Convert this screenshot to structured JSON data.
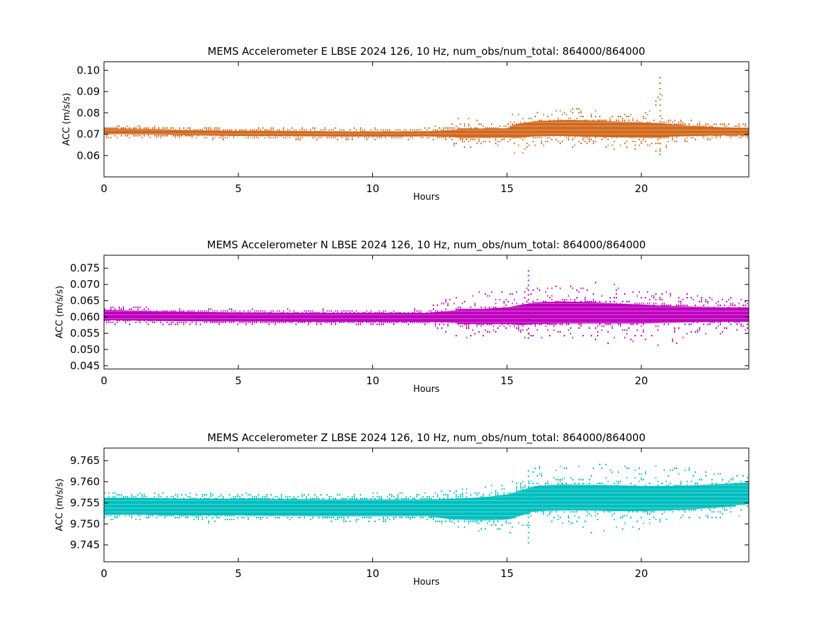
{
  "chart_data": [
    {
      "type": "scatter",
      "title": "MEMS Accelerometer E LBSE 2024 126, 10 Hz, num_obs/num_total: 864000/864000",
      "xlabel": "Hours",
      "ylabel": "ACC (m/s/s)",
      "xlim": [
        0,
        24
      ],
      "ylim": [
        0.05,
        0.104
      ],
      "xticks": [
        0,
        5,
        10,
        15,
        20
      ],
      "yticks": [
        0.06,
        0.07,
        0.08,
        0.09,
        0.1
      ],
      "ytick_labels": [
        "0.06",
        "0.07",
        "0.08",
        "0.09",
        "0.10"
      ],
      "grid": false,
      "color": "#d2691e",
      "series": [
        {
          "hours": [
            0,
            1,
            2,
            3,
            4,
            5,
            6,
            7,
            8,
            9,
            10,
            11,
            12,
            13,
            13.2,
            14,
            15,
            15.2,
            16,
            17,
            17.3,
            18,
            19,
            20,
            20.7,
            21,
            22,
            23,
            24
          ],
          "center": [
            0.0713,
            0.0712,
            0.071,
            0.0707,
            0.0704,
            0.0703,
            0.0703,
            0.0702,
            0.0701,
            0.07,
            0.07,
            0.07,
            0.0701,
            0.0702,
            0.0703,
            0.0704,
            0.0706,
            0.0712,
            0.0728,
            0.0731,
            0.0732,
            0.073,
            0.0726,
            0.0722,
            0.072,
            0.0718,
            0.0715,
            0.0713,
            0.0712
          ],
          "core_low": [
            0.07,
            0.0699,
            0.0698,
            0.0695,
            0.0693,
            0.0692,
            0.0692,
            0.0691,
            0.069,
            0.0689,
            0.0689,
            0.0689,
            0.069,
            0.0686,
            0.068,
            0.0682,
            0.0684,
            0.068,
            0.069,
            0.0692,
            0.069,
            0.0688,
            0.0685,
            0.0683,
            0.0682,
            0.0688,
            0.0692,
            0.0694,
            0.0695
          ],
          "core_high": [
            0.0727,
            0.0726,
            0.0724,
            0.072,
            0.0717,
            0.0716,
            0.0716,
            0.0715,
            0.0714,
            0.0713,
            0.0713,
            0.0713,
            0.0714,
            0.072,
            0.0728,
            0.0727,
            0.0728,
            0.0745,
            0.0762,
            0.0766,
            0.0767,
            0.0765,
            0.076,
            0.0755,
            0.0752,
            0.0748,
            0.0738,
            0.0732,
            0.073
          ],
          "outer_low": [
            0.068,
            0.068,
            0.068,
            0.068,
            0.0678,
            0.0678,
            0.0678,
            0.0678,
            0.0678,
            0.0677,
            0.0677,
            0.0677,
            0.0678,
            0.064,
            0.062,
            0.064,
            0.065,
            0.058,
            0.064,
            0.065,
            0.064,
            0.063,
            0.062,
            0.063,
            0.0605,
            0.065,
            0.067,
            0.0675,
            0.068
          ],
          "outer_high": [
            0.0735,
            0.0735,
            0.0738,
            0.073,
            0.0728,
            0.0728,
            0.0728,
            0.0728,
            0.0727,
            0.0726,
            0.0726,
            0.0726,
            0.0728,
            0.076,
            0.078,
            0.077,
            0.0775,
            0.08,
            0.081,
            0.082,
            0.0825,
            0.0833,
            0.08,
            0.079,
            0.0965,
            0.078,
            0.076,
            0.0755,
            0.075
          ],
          "spike": {
            "hours": 20.7,
            "max": 0.0965,
            "min": 0.0605
          }
        }
      ]
    },
    {
      "type": "scatter",
      "title": "MEMS Accelerometer N LBSE 2024 126, 10 Hz, num_obs/num_total: 864000/864000",
      "xlabel": "Hours",
      "ylabel": "ACC (m/s/s)",
      "xlim": [
        0,
        24
      ],
      "ylim": [
        0.044,
        0.079
      ],
      "xticks": [
        0,
        5,
        10,
        15,
        20
      ],
      "yticks": [
        0.045,
        0.05,
        0.055,
        0.06,
        0.065,
        0.07,
        0.075
      ],
      "ytick_labels": [
        "0.045",
        "0.050",
        "0.055",
        "0.060",
        "0.065",
        "0.070",
        "0.075"
      ],
      "grid": false,
      "color": "#bf00bf",
      "series": [
        {
          "hours": [
            0,
            1,
            2,
            3,
            4,
            5,
            6,
            7,
            8,
            9,
            10,
            11,
            12,
            13,
            13.2,
            14,
            15,
            15.5,
            16,
            17,
            18,
            19,
            20,
            21,
            22,
            23,
            24
          ],
          "center": [
            0.0606,
            0.0604,
            0.0602,
            0.0601,
            0.06,
            0.06,
            0.06,
            0.0599,
            0.0599,
            0.0599,
            0.0599,
            0.0599,
            0.0599,
            0.06,
            0.0601,
            0.0602,
            0.0605,
            0.0608,
            0.0612,
            0.0614,
            0.0613,
            0.0611,
            0.0609,
            0.0608,
            0.0608,
            0.0608,
            0.0608
          ],
          "core_low": [
            0.059,
            0.0589,
            0.0588,
            0.0587,
            0.0586,
            0.0586,
            0.0586,
            0.0585,
            0.0585,
            0.0585,
            0.0585,
            0.0585,
            0.0585,
            0.0582,
            0.0578,
            0.0578,
            0.0578,
            0.0575,
            0.0578,
            0.058,
            0.058,
            0.058,
            0.058,
            0.0582,
            0.0584,
            0.0585,
            0.0585
          ],
          "core_high": [
            0.0622,
            0.062,
            0.0618,
            0.0616,
            0.0615,
            0.0614,
            0.0614,
            0.0613,
            0.0613,
            0.0613,
            0.0613,
            0.0613,
            0.0613,
            0.062,
            0.0625,
            0.0625,
            0.063,
            0.0638,
            0.0645,
            0.0648,
            0.0646,
            0.0642,
            0.0638,
            0.0634,
            0.0632,
            0.063,
            0.063
          ],
          "outer_low": [
            0.0578,
            0.0578,
            0.0578,
            0.0572,
            0.0578,
            0.0578,
            0.0575,
            0.0578,
            0.0578,
            0.0578,
            0.0575,
            0.0578,
            0.0578,
            0.0545,
            0.053,
            0.0535,
            0.0545,
            0.0535,
            0.0535,
            0.054,
            0.052,
            0.051,
            0.052,
            0.0505,
            0.054,
            0.0545,
            0.055
          ],
          "outer_high": [
            0.0632,
            0.0632,
            0.0625,
            0.0622,
            0.0622,
            0.0622,
            0.0622,
            0.0622,
            0.0622,
            0.0622,
            0.0622,
            0.0622,
            0.0625,
            0.067,
            0.068,
            0.069,
            0.068,
            0.0742,
            0.07,
            0.071,
            0.0712,
            0.07,
            0.069,
            0.068,
            0.067,
            0.066,
            0.065
          ],
          "spike": {
            "hours": 15.8,
            "max": 0.0742,
            "min": 0.0535
          }
        }
      ]
    },
    {
      "type": "scatter",
      "title": "MEMS Accelerometer Z LBSE 2024 126, 10 Hz, num_obs/num_total: 864000/864000",
      "xlabel": "Hours",
      "ylabel": "ACC (m/s/s)",
      "xlim": [
        0,
        24
      ],
      "ylim": [
        9.741,
        9.768
      ],
      "xticks": [
        0,
        5,
        10,
        15,
        20
      ],
      "yticks": [
        9.745,
        9.75,
        9.755,
        9.76,
        9.765
      ],
      "ytick_labels": [
        "9.745",
        "9.750",
        "9.755",
        "9.760",
        "9.765"
      ],
      "grid": false,
      "color": "#00bfbf",
      "series": [
        {
          "hours": [
            0,
            1,
            2,
            3,
            4,
            5,
            6,
            7,
            8,
            9,
            10,
            11,
            12,
            13,
            14,
            15,
            15.5,
            16,
            17,
            18,
            19,
            20,
            21,
            22,
            23,
            24
          ],
          "center": [
            9.7542,
            9.7542,
            9.7541,
            9.754,
            9.754,
            9.754,
            9.7539,
            9.7539,
            9.7538,
            9.7538,
            9.7538,
            9.7538,
            9.7538,
            9.7537,
            9.7537,
            9.754,
            9.755,
            9.756,
            9.7563,
            9.7562,
            9.7561,
            9.756,
            9.756,
            9.7562,
            9.7565,
            9.7567
          ],
          "core_low": [
            9.7522,
            9.7522,
            9.7521,
            9.752,
            9.752,
            9.752,
            9.7519,
            9.7519,
            9.7518,
            9.7518,
            9.7518,
            9.7518,
            9.7518,
            9.751,
            9.7508,
            9.751,
            9.752,
            9.753,
            9.7532,
            9.7532,
            9.753,
            9.753,
            9.7532,
            9.7535,
            9.754,
            9.7548
          ],
          "core_high": [
            9.7562,
            9.7562,
            9.7561,
            9.756,
            9.756,
            9.756,
            9.7559,
            9.7559,
            9.7558,
            9.7558,
            9.7558,
            9.7558,
            9.7558,
            9.756,
            9.7563,
            9.757,
            9.758,
            9.759,
            9.7594,
            9.7593,
            9.7592,
            9.759,
            9.759,
            9.7592,
            9.7595,
            9.7598
          ],
          "outer_low": [
            9.7512,
            9.7512,
            9.7512,
            9.751,
            9.75,
            9.751,
            9.751,
            9.751,
            9.751,
            9.7505,
            9.7505,
            9.751,
            9.7512,
            9.749,
            9.748,
            9.748,
            9.7455,
            9.751,
            9.75,
            9.747,
            9.749,
            9.7485,
            9.75,
            9.751,
            9.7515,
            9.752
          ],
          "outer_high": [
            9.758,
            9.7575,
            9.7575,
            9.7575,
            9.7572,
            9.7572,
            9.7572,
            9.7572,
            9.7572,
            9.757,
            9.7575,
            9.7575,
            9.7575,
            9.758,
            9.759,
            9.76,
            9.7625,
            9.7635,
            9.7645,
            9.7645,
            9.764,
            9.764,
            9.7645,
            9.7635,
            9.7625,
            9.7615
          ],
          "spike": {
            "hours": 15.8,
            "max": 9.7625,
            "min": 9.7455
          }
        }
      ]
    }
  ]
}
